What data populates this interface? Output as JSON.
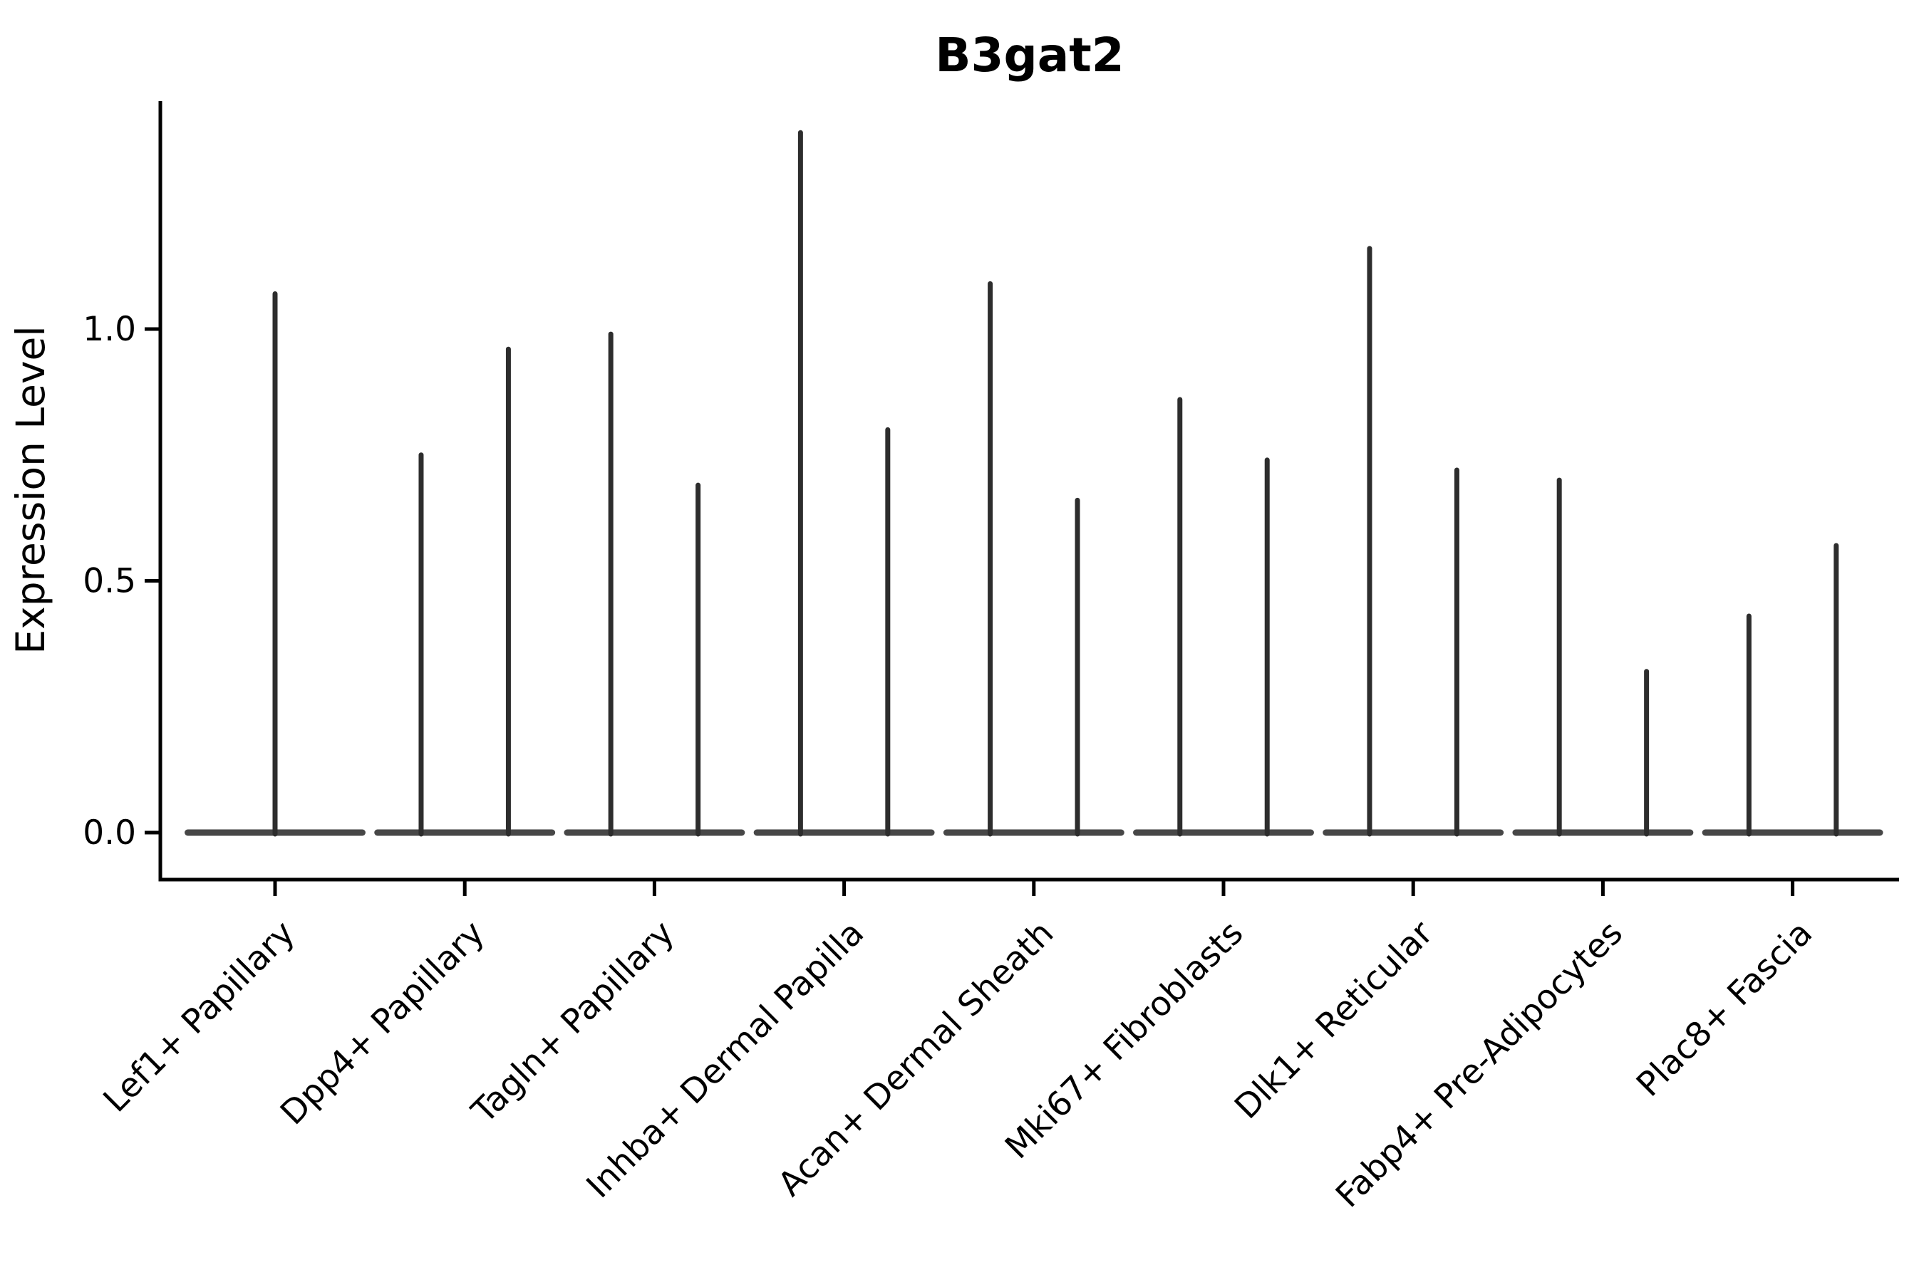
{
  "figure": {
    "background": "#ffffff"
  },
  "title": "B3gat2",
  "y_axis": {
    "label": "Expression Level",
    "tick_labels": [
      "0.0",
      "0.5",
      "1.0"
    ]
  },
  "chart_data": {
    "type": "violin",
    "title": "B3gat2",
    "xlabel": "",
    "ylabel": "Expression Level",
    "ylim": [
      -0.09,
      1.45
    ],
    "yticks": [
      0.0,
      0.5,
      1.0
    ],
    "ytick_labels": [
      "0.0",
      "0.5",
      "1.0"
    ],
    "grid": false,
    "legend": null,
    "x_tick_rotation_deg": 45,
    "categories": [
      "Lef1+ Papillary",
      "Dpp4+ Papillary",
      "Tagln+ Papillary",
      "Inhba+ Dermal Papilla",
      "Acan+ Dermal Sheath",
      "Mki67+ Fibroblasts",
      "Dlk1+ Reticular",
      "Fabp4+ Pre-Adipocytes",
      "Plac8+ Fascia"
    ],
    "description": "Needle-like violins: each violin is a wide flat base at expression 0 plus a thin vertical spike reaching the maximum expression value. offset is in category-width units relative to the category center; max is the spike top in Expression Level units.",
    "base_half_width": 0.46,
    "groups": [
      {
        "category": "Lef1+ Papillary",
        "violins": [
          {
            "offset": 0.0,
            "max": 1.07
          }
        ]
      },
      {
        "category": "Dpp4+ Papillary",
        "violins": [
          {
            "offset": -0.23,
            "max": 0.75
          },
          {
            "offset": 0.23,
            "max": 0.96
          }
        ]
      },
      {
        "category": "Tagln+ Papillary",
        "violins": [
          {
            "offset": -0.23,
            "max": 0.99
          },
          {
            "offset": 0.23,
            "max": 0.69
          }
        ]
      },
      {
        "category": "Inhba+ Dermal Papilla",
        "violins": [
          {
            "offset": -0.23,
            "max": 1.39
          },
          {
            "offset": 0.23,
            "max": 0.8
          }
        ]
      },
      {
        "category": "Acan+ Dermal Sheath",
        "violins": [
          {
            "offset": -0.23,
            "max": 1.09
          },
          {
            "offset": 0.23,
            "max": 0.66
          }
        ]
      },
      {
        "category": "Mki67+ Fibroblasts",
        "violins": [
          {
            "offset": -0.23,
            "max": 0.86
          },
          {
            "offset": 0.23,
            "max": 0.74
          }
        ]
      },
      {
        "category": "Dlk1+ Reticular",
        "violins": [
          {
            "offset": -0.23,
            "max": 1.16
          },
          {
            "offset": 0.23,
            "max": 0.72
          }
        ]
      },
      {
        "category": "Fabp4+ Pre-Adipocytes",
        "violins": [
          {
            "offset": -0.23,
            "max": 0.7
          },
          {
            "offset": 0.23,
            "max": 0.32
          }
        ]
      },
      {
        "category": "Plac8+ Fascia",
        "violins": [
          {
            "offset": -0.23,
            "max": 0.43
          },
          {
            "offset": 0.23,
            "max": 0.57
          }
        ]
      }
    ],
    "colors": {
      "violin_line": "#2d2d2d",
      "violin_base": "#383838",
      "axis": "#000000",
      "text": "#000000"
    }
  }
}
